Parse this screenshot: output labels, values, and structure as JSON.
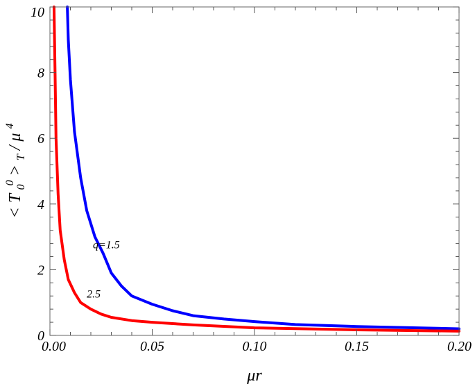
{
  "chart_data": {
    "type": "line",
    "title": "",
    "xlabel": "μr",
    "ylabel_parts": [
      "<",
      "T",
      "0",
      "0",
      ">",
      "T",
      "/",
      "μ",
      "4"
    ],
    "xlim": [
      0,
      0.2
    ],
    "ylim": [
      0,
      10
    ],
    "x_ticks": [
      "0.00",
      "0.05",
      "0.10",
      "0.15",
      "0.20"
    ],
    "y_ticks": [
      "0",
      "2",
      "4",
      "6",
      "8",
      "10"
    ],
    "grid": false,
    "series": [
      {
        "color": "#0000ff",
        "annotation": "q=1.5",
        "points": [
          [
            0.0085,
            10
          ],
          [
            0.009,
            9.0
          ],
          [
            0.01,
            7.8
          ],
          [
            0.012,
            6.2
          ],
          [
            0.015,
            4.8
          ],
          [
            0.018,
            3.8
          ],
          [
            0.022,
            3.0
          ],
          [
            0.026,
            2.5
          ],
          [
            0.03,
            1.9
          ],
          [
            0.035,
            1.5
          ],
          [
            0.04,
            1.2
          ],
          [
            0.05,
            0.95
          ],
          [
            0.06,
            0.75
          ],
          [
            0.07,
            0.6
          ],
          [
            0.085,
            0.5
          ],
          [
            0.1,
            0.42
          ],
          [
            0.12,
            0.33
          ],
          [
            0.15,
            0.27
          ],
          [
            0.2,
            0.2
          ]
        ]
      },
      {
        "color": "#ff0000",
        "annotation": "2.5",
        "points": [
          [
            0.002,
            10
          ],
          [
            0.0025,
            8.0
          ],
          [
            0.003,
            6.0
          ],
          [
            0.004,
            4.3
          ],
          [
            0.005,
            3.2
          ],
          [
            0.007,
            2.3
          ],
          [
            0.009,
            1.7
          ],
          [
            0.012,
            1.3
          ],
          [
            0.015,
            1.0
          ],
          [
            0.02,
            0.8
          ],
          [
            0.025,
            0.65
          ],
          [
            0.03,
            0.55
          ],
          [
            0.04,
            0.45
          ],
          [
            0.05,
            0.4
          ],
          [
            0.07,
            0.32
          ],
          [
            0.1,
            0.23
          ],
          [
            0.15,
            0.17
          ],
          [
            0.2,
            0.13
          ]
        ]
      }
    ]
  }
}
